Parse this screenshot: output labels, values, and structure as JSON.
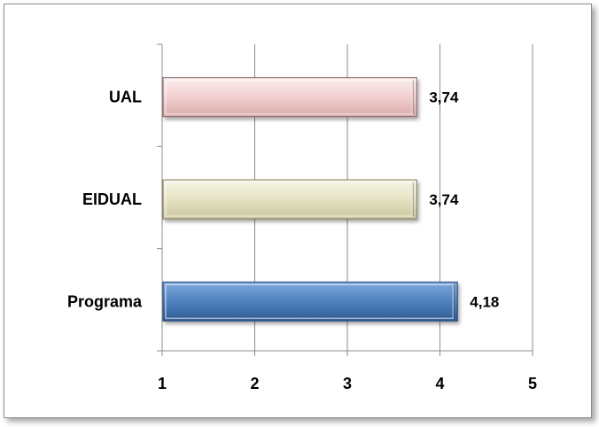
{
  "chart_data": {
    "type": "bar",
    "orientation": "horizontal",
    "categories": [
      "UAL",
      "EIDUAL",
      "Programa"
    ],
    "values": [
      3.74,
      3.74,
      4.18
    ],
    "data_labels": [
      "3,74",
      "3,74",
      "4,18"
    ],
    "xlim": [
      1,
      5
    ],
    "x_ticks": [
      "1",
      "2",
      "3",
      "4",
      "5"
    ],
    "grid": "vertical",
    "bar_colors": [
      "#f4d6d6",
      "#e9e7cc",
      "#4f81bd"
    ],
    "title": "",
    "xlabel": "",
    "ylabel": ""
  }
}
